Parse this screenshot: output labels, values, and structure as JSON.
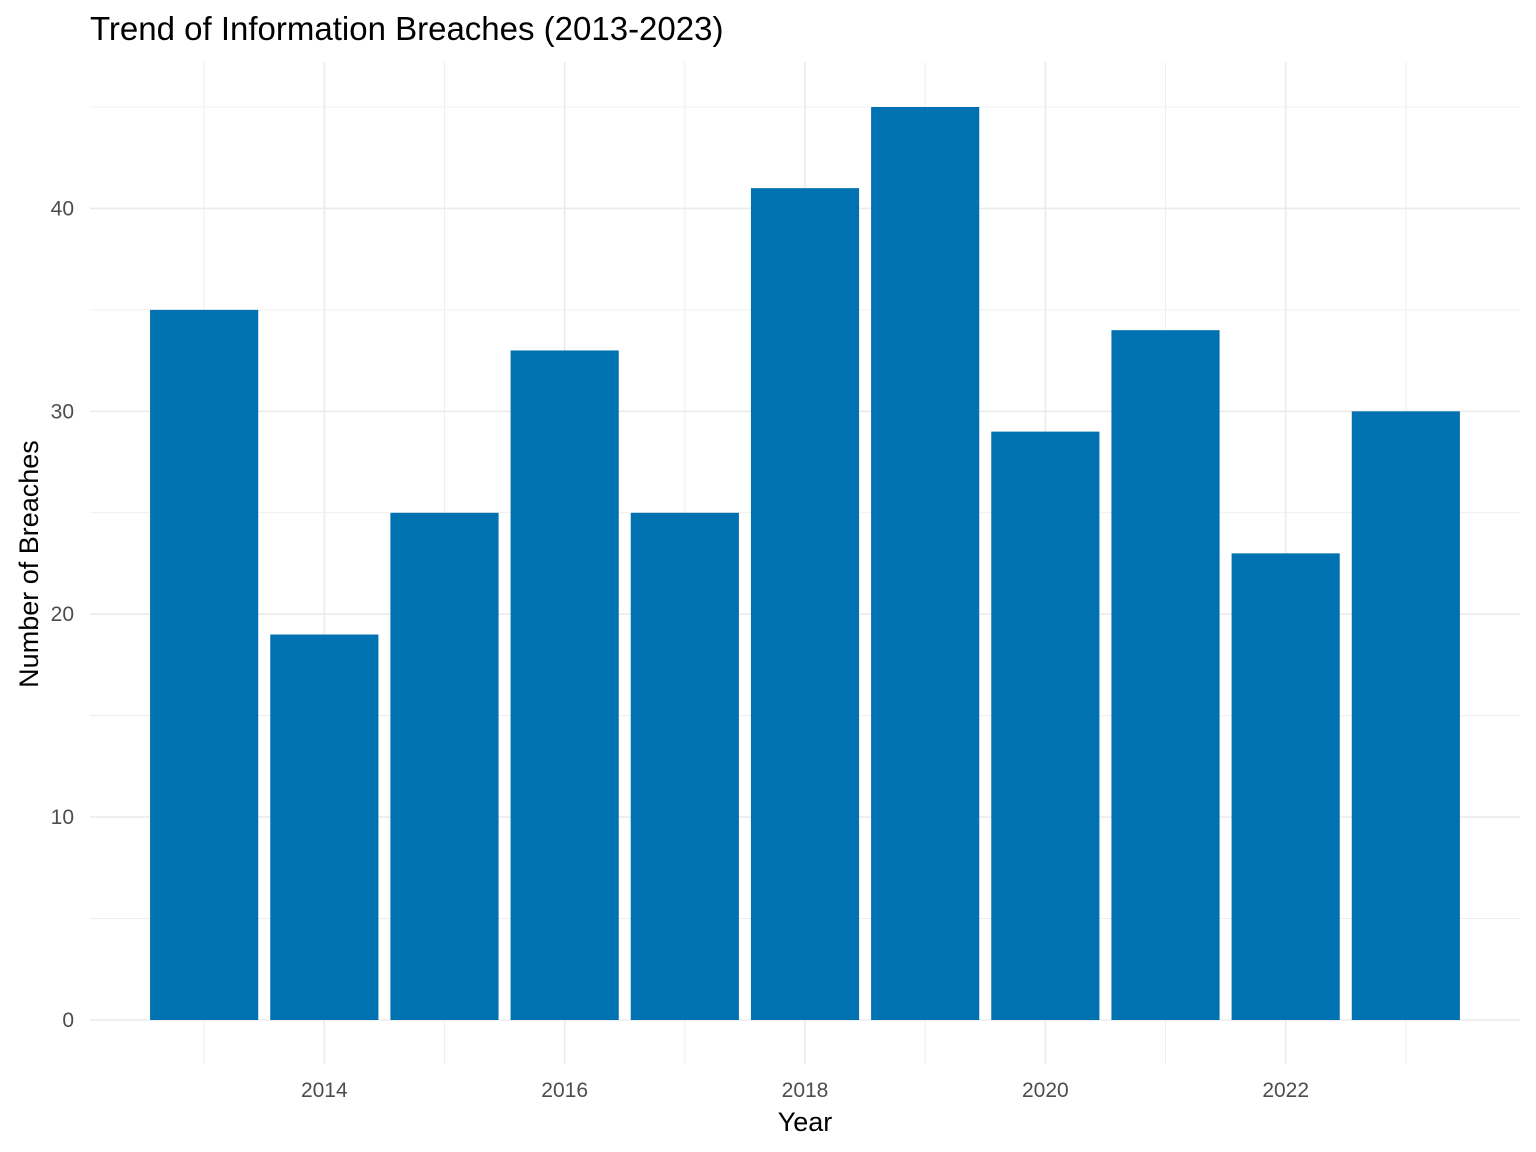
{
  "chart_data": {
    "type": "bar",
    "title": "Trend of Information Breaches (2013-2023)",
    "xlabel": "Year",
    "ylabel": "Number of Breaches",
    "categories": [
      2013,
      2014,
      2015,
      2016,
      2017,
      2018,
      2019,
      2020,
      2021,
      2022,
      2023
    ],
    "values": [
      35,
      19,
      25,
      33,
      25,
      41,
      45,
      29,
      34,
      23,
      30
    ],
    "x_ticks": [
      "2014",
      "2016",
      "2018",
      "2020",
      "2022"
    ],
    "y_ticks": [
      "0",
      "10",
      "20",
      "30",
      "40"
    ],
    "ylim": [
      0,
      47.25
    ],
    "xlim": [
      2012.05,
      2023.95
    ],
    "grid": true,
    "bar_color": "#0072B2"
  }
}
